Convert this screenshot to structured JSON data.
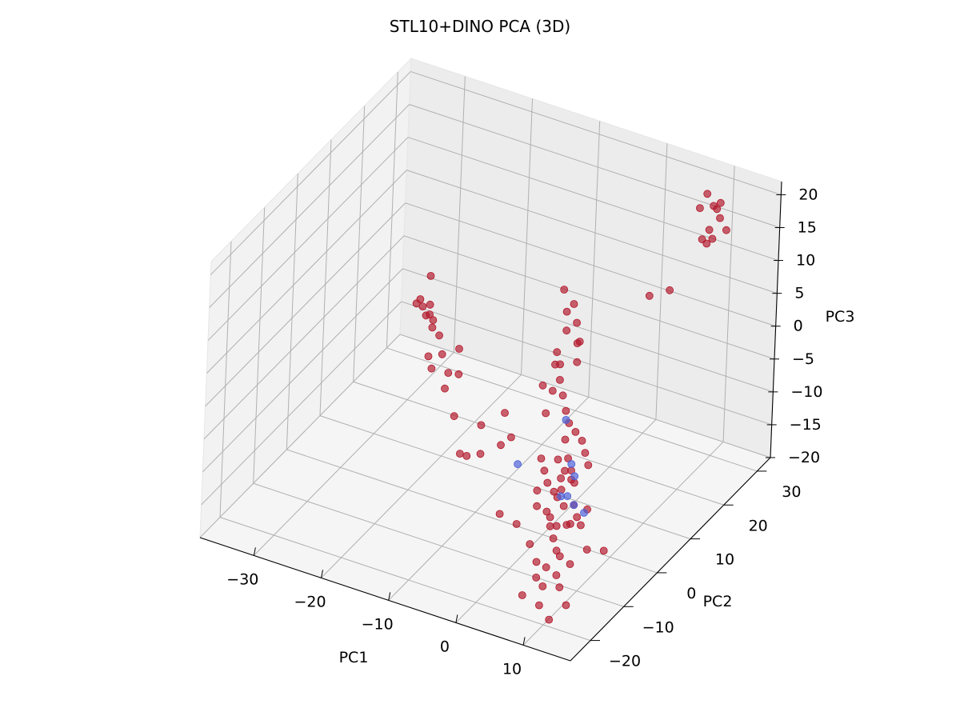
{
  "chart_data": {
    "type": "scatter",
    "projection": "3d",
    "title": "STL10+DINO PCA (3D)",
    "xlabel": "PC1",
    "ylabel": "PC2",
    "zlabel": "PC3",
    "xlim": [
      -38,
      17
    ],
    "ylim": [
      -26,
      34
    ],
    "zlim": [
      -20,
      22
    ],
    "xticks": [
      "−30",
      "−20",
      "−10",
      "0",
      "10"
    ],
    "yticks": [
      "−20",
      "−10",
      "0",
      "10",
      "20",
      "30"
    ],
    "zticks": [
      "−20",
      "−15",
      "−10",
      "−5",
      "0",
      "5",
      "10",
      "15",
      "20"
    ],
    "grid": true,
    "series": [
      {
        "color": "#b2182b",
        "points": [
          [
            9,
            28,
            20.5
          ],
          [
            10,
            28,
            19
          ],
          [
            11,
            28,
            17.5
          ],
          [
            12,
            28,
            16
          ],
          [
            8,
            28,
            18
          ],
          [
            10,
            28,
            14
          ],
          [
            9.5,
            28,
            15.2
          ],
          [
            11,
            28,
            19.8
          ],
          [
            8.5,
            28,
            13.4
          ],
          [
            10.5,
            28,
            18.7
          ],
          [
            9.2,
            28,
            13
          ],
          [
            3,
            24,
            5
          ],
          [
            5,
            26,
            5.5
          ],
          [
            -10,
            25,
            1
          ],
          [
            -8,
            24,
            0
          ],
          [
            -9,
            24,
            -1.5
          ],
          [
            -7,
            23,
            -2
          ],
          [
            -8,
            22,
            -3
          ],
          [
            -6,
            22,
            -4
          ],
          [
            -9,
            21,
            -8
          ],
          [
            -22,
            10,
            0
          ],
          [
            -23,
            11,
            1.5
          ],
          [
            -24,
            12,
            -1
          ],
          [
            -24,
            10,
            2.5
          ],
          [
            -25,
            11,
            1
          ],
          [
            -23,
            12,
            -2.5
          ],
          [
            -21,
            10,
            -2
          ],
          [
            -20,
            9,
            -4
          ],
          [
            -22,
            9,
            -5
          ],
          [
            -21,
            8,
            -6
          ],
          [
            -19,
            9,
            -6.5
          ],
          [
            -17,
            8,
            -5.5
          ],
          [
            -16,
            5,
            -10
          ],
          [
            -18,
            6,
            -7
          ],
          [
            -25,
            13,
            -0.5
          ],
          [
            -24,
            13,
            4.5
          ],
          [
            -23,
            11,
            0
          ],
          [
            -18,
            10,
            -3
          ],
          [
            -10,
            8,
            -9
          ],
          [
            -12,
            5,
            -10
          ],
          [
            -9,
            5,
            -12
          ],
          [
            -11,
            3,
            -13
          ],
          [
            -8,
            6,
            -11
          ],
          [
            -13,
            3,
            -14
          ],
          [
            -14,
            3,
            -14
          ],
          [
            -6,
            15,
            -2
          ],
          [
            -4,
            17,
            -1
          ],
          [
            -3,
            15,
            -2.5
          ],
          [
            -5,
            14,
            -3
          ],
          [
            -4,
            12,
            -4
          ],
          [
            -3,
            11,
            -5.5
          ],
          [
            -6,
            11,
            -5
          ],
          [
            -2,
            10,
            -7
          ],
          [
            -1,
            9,
            -8
          ],
          [
            -4,
            8,
            -7
          ],
          [
            -5,
            12,
            -6
          ],
          [
            0,
            9,
            -9
          ],
          [
            1,
            9,
            -10
          ],
          [
            2,
            8,
            -11
          ],
          [
            0,
            7,
            -12
          ],
          [
            -1,
            6,
            -12
          ],
          [
            1,
            6,
            -13
          ],
          [
            2,
            5,
            -14
          ],
          [
            -2,
            4,
            -13
          ],
          [
            -1,
            3,
            -14
          ],
          [
            0,
            3,
            -15
          ],
          [
            1,
            2,
            -15
          ],
          [
            2,
            2,
            -16
          ],
          [
            3,
            3,
            -16
          ],
          [
            0,
            1,
            -17
          ],
          [
            1,
            0,
            -17
          ],
          [
            2,
            0,
            -18
          ],
          [
            -1,
            0,
            -16
          ],
          [
            3,
            1,
            -18
          ],
          [
            -2,
            2,
            -15
          ],
          [
            4,
            2,
            -17
          ],
          [
            2,
            4,
            -13
          ],
          [
            3,
            7,
            -12
          ],
          [
            1,
            4,
            -12
          ],
          [
            -1,
            8,
            -10
          ],
          [
            0,
            5,
            -14
          ],
          [
            2,
            1,
            -13
          ],
          [
            -3,
            5,
            -12
          ],
          [
            3,
            -3,
            -18
          ],
          [
            4,
            -4,
            -19
          ],
          [
            5,
            -5,
            -19
          ],
          [
            4,
            -7,
            -20
          ],
          [
            6,
            -8,
            -20
          ],
          [
            7,
            -6,
            -19
          ],
          [
            5,
            -10,
            -21
          ],
          [
            3,
            -12,
            -22
          ],
          [
            1,
            -6,
            -18
          ],
          [
            -2,
            -4,
            -17
          ],
          [
            -5,
            -3,
            -17
          ],
          [
            8,
            -3,
            -18
          ],
          [
            6,
            -1,
            -16
          ],
          [
            4,
            0,
            -17
          ],
          [
            5,
            3,
            -16
          ],
          [
            2,
            -2,
            -17
          ],
          [
            7,
            -9,
            -21
          ],
          [
            9,
            -11,
            -22
          ],
          [
            6,
            -13,
            -22
          ],
          [
            8,
            -14,
            -23
          ],
          [
            4,
            -10,
            -20
          ],
          [
            3,
            -8,
            -19
          ],
          [
            10,
            -2,
            -18
          ]
        ]
      },
      {
        "color": "#4a5fd9",
        "points": [
          [
            -5,
            2,
            -12
          ],
          [
            -1,
            8,
            -7
          ],
          [
            2,
            5,
            -13
          ],
          [
            1,
            6,
            -12
          ],
          [
            2,
            3,
            -15
          ],
          [
            3,
            3,
            -16
          ],
          [
            5,
            2,
            -16
          ],
          [
            2,
            1,
            -14
          ]
        ]
      }
    ]
  }
}
